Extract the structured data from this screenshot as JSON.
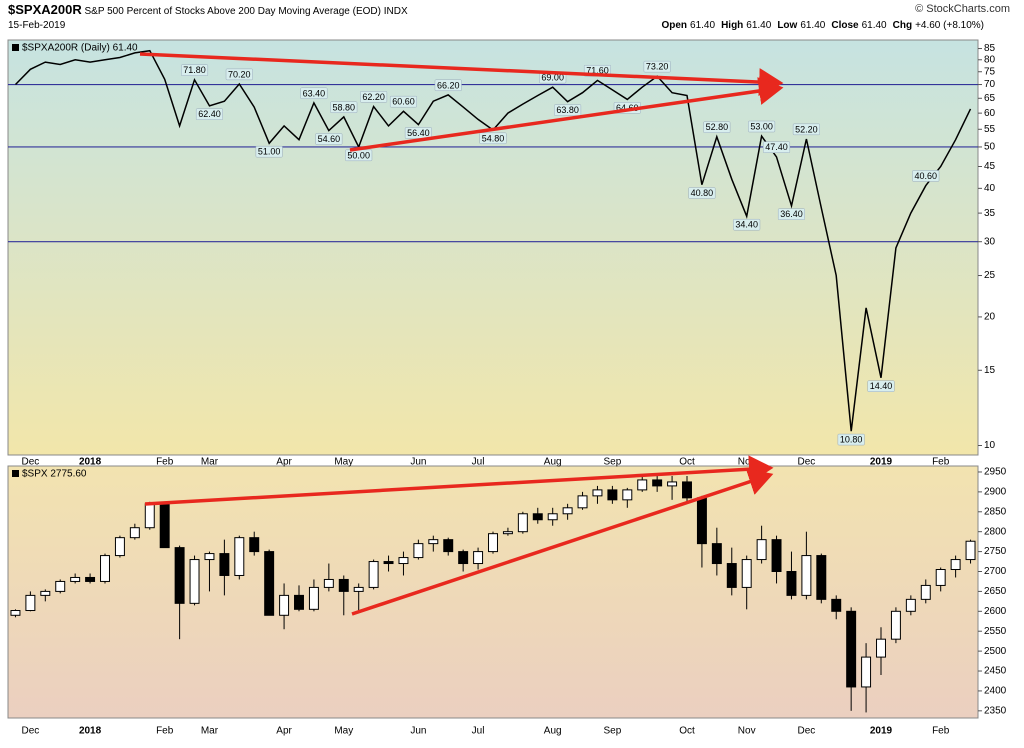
{
  "header": {
    "symbol": "$SPXA200R",
    "description": "S&P 500 Percent of Stocks Above 200 Day Moving Average (EOD)",
    "exchange": "INDX",
    "date": "15-Feb-2019",
    "quote": [
      [
        "Open",
        "61.40"
      ],
      [
        "High",
        "61.40"
      ],
      [
        "Low",
        "61.40"
      ],
      [
        "Close",
        "61.40"
      ],
      [
        "Chg",
        "+4.60 (+8.10%)"
      ]
    ],
    "credit": "© StockCharts.com"
  },
  "chart_data": [
    {
      "type": "line",
      "categories": [
        null,
        "Dec",
        null,
        null,
        null,
        "2018",
        null,
        null,
        null,
        null,
        "Feb",
        null,
        null,
        "Mar",
        null,
        null,
        null,
        null,
        "Apr",
        null,
        null,
        null,
        "May",
        null,
        null,
        null,
        null,
        "Jun",
        null,
        null,
        null,
        "Jul",
        null,
        null,
        null,
        null,
        "Aug",
        null,
        null,
        null,
        "Sep",
        null,
        null,
        null,
        null,
        "Oct",
        null,
        null,
        null,
        "Nov",
        null,
        null,
        null,
        "Dec",
        null,
        null,
        null,
        null,
        "2019",
        null,
        null,
        null,
        "Feb",
        null,
        null
      ],
      "series": [
        {
          "name": "$SPXA200R (Daily) 61.40",
          "color": "#000000",
          "values": [
            70,
            76,
            79,
            78,
            80,
            79,
            80,
            81,
            83,
            84,
            72,
            56,
            71.8,
            62.4,
            64,
            70.2,
            62,
            51,
            56,
            52,
            63.4,
            54.6,
            58.8,
            50,
            62.2,
            56,
            60.6,
            56.4,
            64,
            66.2,
            62,
            58,
            54.8,
            60,
            63,
            66,
            69,
            63.8,
            67,
            71.6,
            68,
            64.6,
            69,
            73.2,
            67,
            66,
            40.8,
            52.8,
            42,
            34.4,
            53,
            47.4,
            36.4,
            52.2,
            36,
            25,
            10.8,
            21,
            14.4,
            29,
            35,
            40.6,
            45,
            52,
            61.4
          ],
          "value_labels": [
            null,
            null,
            null,
            null,
            null,
            null,
            null,
            null,
            null,
            null,
            null,
            null,
            "71.80",
            "62.40",
            null,
            "70.20",
            null,
            "51.00",
            null,
            null,
            "63.40",
            "54.60",
            "58.80",
            "50.00",
            "62.20",
            null,
            "60.60",
            "56.40",
            null,
            "66.20",
            null,
            null,
            "54.80",
            null,
            null,
            null,
            "69.00",
            "63.80",
            null,
            "71.60",
            null,
            "64.60",
            null,
            "73.20",
            null,
            null,
            "40.80",
            "52.80",
            null,
            "34.40",
            "53.00",
            "47.40",
            "36.40",
            "52.20",
            null,
            null,
            "10.80",
            null,
            "14.40",
            null,
            null,
            "40.60",
            null,
            null,
            null
          ]
        }
      ],
      "ylim": [
        9.5,
        89
      ],
      "yscale": "log",
      "yticks": [
        10,
        15,
        20,
        25,
        30,
        35,
        40,
        45,
        50,
        55,
        60,
        65,
        70,
        75,
        80,
        85
      ],
      "hlines": [
        70,
        50,
        30
      ],
      "hline_color": "#33339a"
    },
    {
      "type": "candlestick",
      "categories": [
        null,
        "Dec",
        null,
        null,
        null,
        "2018",
        null,
        null,
        null,
        null,
        "Feb",
        null,
        null,
        "Mar",
        null,
        null,
        null,
        null,
        "Apr",
        null,
        null,
        null,
        "May",
        null,
        null,
        null,
        null,
        "Jun",
        null,
        null,
        null,
        "Jul",
        null,
        null,
        null,
        null,
        "Aug",
        null,
        null,
        null,
        "Sep",
        null,
        null,
        null,
        null,
        "Oct",
        null,
        null,
        null,
        "Nov",
        null,
        null,
        null,
        "Dec",
        null,
        null,
        null,
        null,
        "2019",
        null,
        null,
        null,
        "Feb",
        null,
        null
      ],
      "series": [
        {
          "name": "$SPX 2775.60",
          "color": "#000000",
          "open": [
            2590,
            2602,
            2640,
            2650,
            2675,
            2685,
            2675,
            2740,
            2785,
            2810,
            2870,
            2760,
            2620,
            2730,
            2745,
            2690,
            2785,
            2750,
            2590,
            2640,
            2605,
            2660,
            2680,
            2650,
            2660,
            2725,
            2720,
            2735,
            2770,
            2780,
            2750,
            2720,
            2750,
            2795,
            2800,
            2845,
            2830,
            2845,
            2860,
            2890,
            2905,
            2880,
            2905,
            2930,
            2915,
            2925,
            2885,
            2770,
            2720,
            2660,
            2730,
            2780,
            2700,
            2640,
            2740,
            2630,
            2600,
            2410,
            2485,
            2530,
            2600,
            2630,
            2665,
            2705,
            2730
          ],
          "high": [
            2605,
            2650,
            2655,
            2680,
            2695,
            2695,
            2745,
            2790,
            2820,
            2875,
            2875,
            2765,
            2740,
            2750,
            2780,
            2790,
            2800,
            2755,
            2670,
            2665,
            2680,
            2720,
            2690,
            2670,
            2730,
            2740,
            2750,
            2780,
            2790,
            2785,
            2755,
            2760,
            2800,
            2810,
            2850,
            2860,
            2860,
            2870,
            2900,
            2915,
            2915,
            2910,
            2940,
            2945,
            2940,
            2940,
            2890,
            2810,
            2760,
            2740,
            2815,
            2790,
            2750,
            2800,
            2745,
            2640,
            2610,
            2520,
            2560,
            2610,
            2640,
            2680,
            2710,
            2740,
            2780
          ],
          "low": [
            2585,
            2600,
            2625,
            2645,
            2670,
            2670,
            2670,
            2735,
            2780,
            2805,
            2760,
            2530,
            2615,
            2650,
            2640,
            2680,
            2740,
            2590,
            2555,
            2600,
            2600,
            2650,
            2590,
            2600,
            2655,
            2700,
            2690,
            2730,
            2750,
            2740,
            2700,
            2705,
            2745,
            2790,
            2795,
            2820,
            2815,
            2830,
            2855,
            2870,
            2870,
            2860,
            2900,
            2900,
            2880,
            2870,
            2710,
            2690,
            2640,
            2605,
            2720,
            2670,
            2630,
            2630,
            2620,
            2580,
            2350,
            2346,
            2440,
            2520,
            2590,
            2620,
            2650,
            2685,
            2720
          ],
          "close": [
            2602,
            2640,
            2650,
            2675,
            2685,
            2675,
            2740,
            2785,
            2810,
            2870,
            2760,
            2620,
            2730,
            2745,
            2690,
            2785,
            2750,
            2590,
            2640,
            2605,
            2660,
            2680,
            2650,
            2660,
            2725,
            2720,
            2735,
            2770,
            2780,
            2750,
            2720,
            2750,
            2795,
            2800,
            2845,
            2830,
            2845,
            2860,
            2890,
            2905,
            2880,
            2905,
            2930,
            2915,
            2925,
            2885,
            2770,
            2720,
            2660,
            2730,
            2780,
            2700,
            2640,
            2740,
            2630,
            2600,
            2410,
            2485,
            2530,
            2600,
            2630,
            2665,
            2705,
            2730,
            2776
          ]
        }
      ],
      "ylim": [
        2332,
        2965
      ],
      "yticks": [
        2350,
        2400,
        2450,
        2500,
        2550,
        2600,
        2650,
        2700,
        2750,
        2800,
        2850,
        2900,
        2950
      ]
    }
  ]
}
